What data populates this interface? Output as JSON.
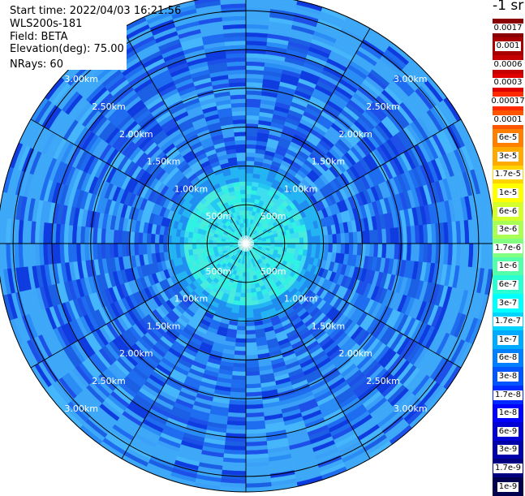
{
  "header": {
    "start_time": "Start time: 2022/04/03 16:21:56",
    "instrument": "WLS200s-181",
    "field": "Field: BETA",
    "elevation": "Elevation(deg): 75.00",
    "nrays": "NRays: 60"
  },
  "colorbar": {
    "unit_label": "-1 sr",
    "levels": [
      {
        "label": "0.0017",
        "color": "#8b0000"
      },
      {
        "label": "0.001",
        "color": "#a80000"
      },
      {
        "label": "0.0006",
        "color": "#c40000"
      },
      {
        "label": "0.0003",
        "color": "#e00000"
      },
      {
        "label": "0.00017",
        "color": "#ff2a00"
      },
      {
        "label": "0.0001",
        "color": "#ff5500"
      },
      {
        "label": "6e-5",
        "color": "#ff8000"
      },
      {
        "label": "3e-5",
        "color": "#ffaa00"
      },
      {
        "label": "1.7e-5",
        "color": "#ffd400"
      },
      {
        "label": "1e-5",
        "color": "#ffff00"
      },
      {
        "label": "6e-6",
        "color": "#d4ff2a"
      },
      {
        "label": "3e-6",
        "color": "#aaff55"
      },
      {
        "label": "1.7e-6",
        "color": "#80ff80"
      },
      {
        "label": "1e-6",
        "color": "#55ffaa"
      },
      {
        "label": "6e-7",
        "color": "#2affd4"
      },
      {
        "label": "3e-7",
        "color": "#00ffff"
      },
      {
        "label": "1.7e-7",
        "color": "#00d4ff"
      },
      {
        "label": "1e-7",
        "color": "#00aaff"
      },
      {
        "label": "6e-8",
        "color": "#0080ff"
      },
      {
        "label": "3e-8",
        "color": "#0055ff"
      },
      {
        "label": "1.7e-8",
        "color": "#002aff"
      },
      {
        "label": "1e-8",
        "color": "#0000ff"
      },
      {
        "label": "6e-9",
        "color": "#0000d4"
      },
      {
        "label": "3e-9",
        "color": "#0000aa"
      },
      {
        "label": "1.7e-9",
        "color": "#000080"
      },
      {
        "label": "1e-9",
        "color": "#00004f"
      }
    ]
  },
  "ppi": {
    "range_rings": [
      {
        "label": "500m",
        "km": 0.5
      },
      {
        "label": "1.00km",
        "km": 1.0
      },
      {
        "label": "1.50km",
        "km": 1.5
      },
      {
        "label": "2.00km",
        "km": 2.0
      },
      {
        "label": "2.50km",
        "km": 2.5
      },
      {
        "label": "3.00km",
        "km": 3.0
      }
    ],
    "nrays": 60,
    "max_range_km": 3.2,
    "ring_label_color": "#ffffff",
    "grid_color": "#000000"
  }
}
